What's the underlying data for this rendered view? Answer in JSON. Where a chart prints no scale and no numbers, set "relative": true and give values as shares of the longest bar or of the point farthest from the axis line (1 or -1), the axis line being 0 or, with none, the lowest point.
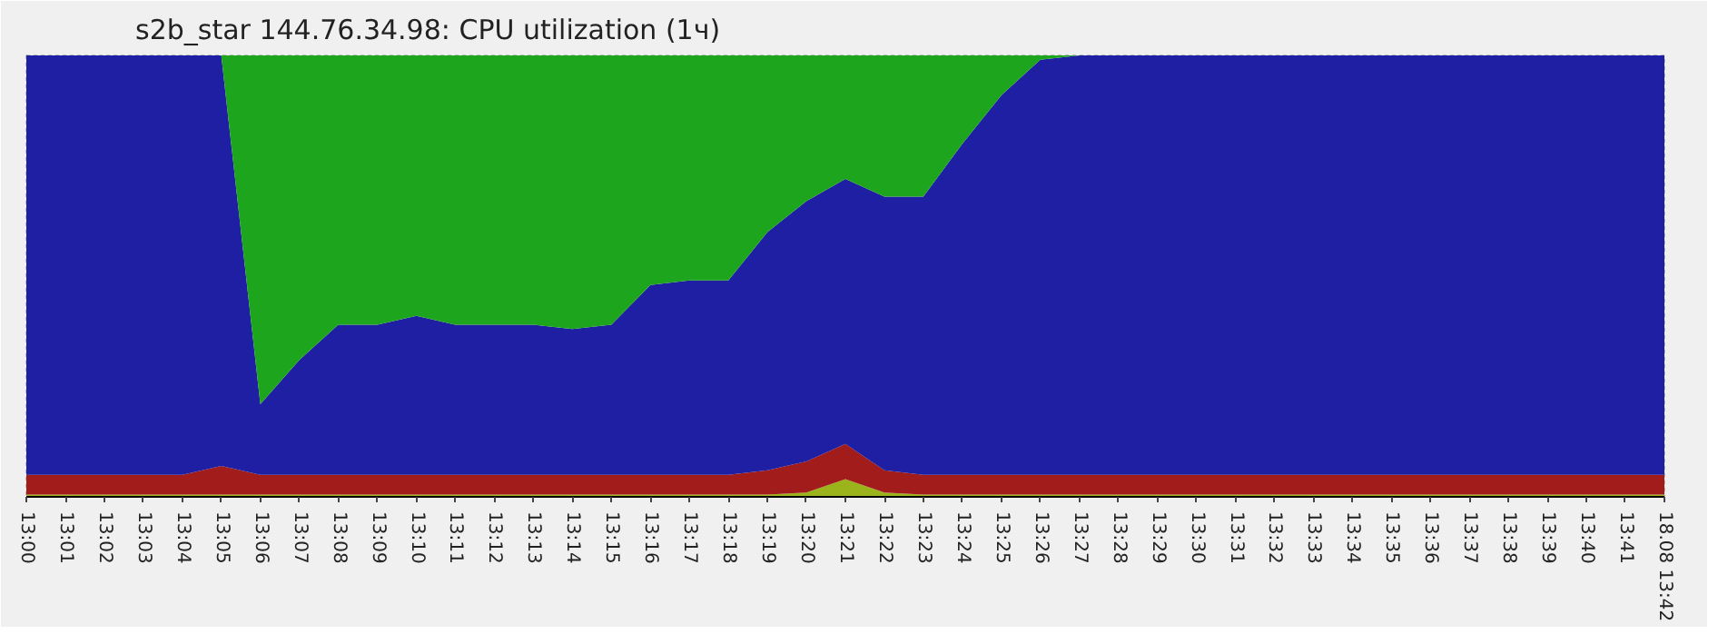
{
  "chart_data": {
    "type": "area",
    "stacked": true,
    "relative": true,
    "title": "s2b_star 144.76.34.98: CPU utilization (1ч)",
    "x": [
      13.0,
      13.0167,
      13.0333,
      13.05,
      13.0667,
      13.0833,
      13.1,
      13.1167,
      13.1333,
      13.15,
      13.1667,
      13.1833,
      13.2,
      13.2167,
      13.2333,
      13.25,
      13.2667,
      13.2833,
      13.3,
      13.3167,
      13.3333,
      13.35,
      13.3667,
      13.3833,
      13.4,
      13.4167,
      13.4333,
      13.45,
      13.4667,
      13.4833,
      13.5,
      13.5167,
      13.5333,
      13.55,
      13.5667,
      13.5833,
      13.6,
      13.6167,
      13.6333,
      13.65,
      13.6667,
      13.6833,
      13.7
    ],
    "xlim": [
      13.0,
      13.7
    ],
    "xticks": [
      {
        "value": 13.0,
        "label": "13:00"
      },
      {
        "value": 13.0167,
        "label": "13:01"
      },
      {
        "value": 13.0333,
        "label": "13:02"
      },
      {
        "value": 13.05,
        "label": "13:03"
      },
      {
        "value": 13.0667,
        "label": "13:04"
      },
      {
        "value": 13.0833,
        "label": "13:05"
      },
      {
        "value": 13.1,
        "label": "13:06"
      },
      {
        "value": 13.1167,
        "label": "13:07"
      },
      {
        "value": 13.1333,
        "label": "13:08"
      },
      {
        "value": 13.15,
        "label": "13:09"
      },
      {
        "value": 13.1667,
        "label": "13:10"
      },
      {
        "value": 13.1833,
        "label": "13:11"
      },
      {
        "value": 13.2,
        "label": "13:12"
      },
      {
        "value": 13.2167,
        "label": "13:13"
      },
      {
        "value": 13.2333,
        "label": "13:14"
      },
      {
        "value": 13.25,
        "label": "13:15"
      },
      {
        "value": 13.2667,
        "label": "13:16"
      },
      {
        "value": 13.2833,
        "label": "13:17"
      },
      {
        "value": 13.3,
        "label": "13:18"
      },
      {
        "value": 13.3167,
        "label": "13:19"
      },
      {
        "value": 13.3333,
        "label": "13:20"
      },
      {
        "value": 13.35,
        "label": "13:21"
      },
      {
        "value": 13.3667,
        "label": "13:22"
      },
      {
        "value": 13.3833,
        "label": "13:23"
      },
      {
        "value": 13.4,
        "label": "13:24"
      },
      {
        "value": 13.4167,
        "label": "13:25"
      },
      {
        "value": 13.4333,
        "label": "13:26"
      },
      {
        "value": 13.45,
        "label": "13:27"
      },
      {
        "value": 13.4667,
        "label": "13:28"
      },
      {
        "value": 13.4833,
        "label": "13:29"
      },
      {
        "value": 13.5,
        "label": "13:30"
      },
      {
        "value": 13.5167,
        "label": "13:31"
      },
      {
        "value": 13.5333,
        "label": "13:32"
      },
      {
        "value": 13.55,
        "label": "13:33"
      },
      {
        "value": 13.5667,
        "label": "13:34"
      },
      {
        "value": 13.5833,
        "label": "13:35"
      },
      {
        "value": 13.6,
        "label": "13:36"
      },
      {
        "value": 13.6167,
        "label": "13:37"
      },
      {
        "value": 13.6333,
        "label": "13:38"
      },
      {
        "value": 13.65,
        "label": "13:39"
      },
      {
        "value": 13.6667,
        "label": "13:40"
      },
      {
        "value": 13.6833,
        "label": "13:41"
      },
      {
        "value": 13.7,
        "label": "18.08 13:42"
      }
    ],
    "series": [
      {
        "color": "#9cb41c",
        "values": [
          0.005,
          0.005,
          0.005,
          0.005,
          0.005,
          0.005,
          0.005,
          0.005,
          0.005,
          0.005,
          0.005,
          0.005,
          0.005,
          0.005,
          0.005,
          0.005,
          0.005,
          0.005,
          0.005,
          0.005,
          0.01,
          0.04,
          0.01,
          0.005,
          0.005,
          0.005,
          0.005,
          0.005,
          0.005,
          0.005,
          0.005,
          0.005,
          0.005,
          0.005,
          0.005,
          0.005,
          0.005,
          0.005,
          0.005,
          0.005,
          0.005,
          0.005,
          0.005
        ]
      },
      {
        "color": "#a31c1c",
        "values": [
          0.045,
          0.045,
          0.045,
          0.045,
          0.045,
          0.065,
          0.045,
          0.045,
          0.045,
          0.045,
          0.045,
          0.045,
          0.045,
          0.045,
          0.045,
          0.045,
          0.045,
          0.045,
          0.045,
          0.055,
          0.07,
          0.08,
          0.05,
          0.045,
          0.045,
          0.045,
          0.045,
          0.045,
          0.045,
          0.045,
          0.045,
          0.045,
          0.045,
          0.045,
          0.045,
          0.045,
          0.045,
          0.045,
          0.045,
          0.045,
          0.045,
          0.045,
          0.045
        ]
      },
      {
        "color": "#1f1fa3",
        "values": [
          0.95,
          0.95,
          0.95,
          0.95,
          0.95,
          0.93,
          0.16,
          0.26,
          0.34,
          0.34,
          0.36,
          0.34,
          0.34,
          0.34,
          0.33,
          0.34,
          0.43,
          0.44,
          0.44,
          0.54,
          0.59,
          0.6,
          0.62,
          0.63,
          0.75,
          0.86,
          0.94,
          0.95,
          0.95,
          0.95,
          0.95,
          0.95,
          0.95,
          0.95,
          0.95,
          0.95,
          0.95,
          0.95,
          0.95,
          0.95,
          0.95,
          0.95,
          0.95
        ]
      },
      {
        "color": "#1ea51e",
        "values": [
          0,
          0,
          0,
          0,
          0,
          0,
          0.79,
          0.69,
          0.61,
          0.61,
          0.59,
          0.61,
          0.61,
          0.61,
          0.62,
          0.61,
          0.52,
          0.51,
          0.51,
          0.4,
          0.33,
          0.28,
          0.32,
          0.32,
          0.2,
          0.09,
          0.01,
          0,
          0,
          0,
          0,
          0,
          0,
          0,
          0,
          0,
          0,
          0,
          0,
          0,
          0,
          0,
          0
        ]
      }
    ]
  }
}
